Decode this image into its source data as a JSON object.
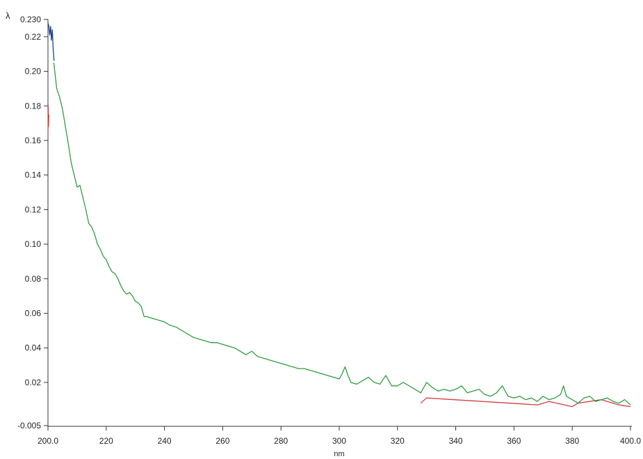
{
  "chart_data": {
    "type": "line",
    "title": "",
    "ylabel": "λ",
    "xlabel": "nm",
    "xlim": [
      200.0,
      400.0
    ],
    "ylim": [
      -0.005,
      0.23
    ],
    "grid": false,
    "x_ticks": [
      200.0,
      220,
      240,
      260,
      280,
      300,
      320,
      340,
      360,
      380,
      400.0
    ],
    "x_tick_labels": [
      "200.0",
      "220",
      "240",
      "260",
      "280",
      "300",
      "320",
      "340",
      "360",
      "380",
      "400.0"
    ],
    "y_ticks": [
      -0.005,
      0.02,
      0.04,
      0.06,
      0.08,
      0.1,
      0.12,
      0.14,
      0.16,
      0.18,
      0.2,
      0.22,
      0.23
    ],
    "y_tick_labels": [
      "-0.005",
      "0.02",
      "0.04",
      "0.06",
      "0.08",
      "0.10",
      "0.12",
      "0.14",
      "0.16",
      "0.18",
      "0.20",
      "0.22",
      "0.230"
    ],
    "series": [
      {
        "color": "#1f3f8f",
        "x": [
          200.0,
          200.3,
          200.6,
          200.9,
          201.2,
          201.5,
          201.8,
          202.1
        ],
        "y": [
          0.228,
          0.226,
          0.221,
          0.226,
          0.218,
          0.224,
          0.213,
          0.206
        ]
      },
      {
        "color": "#d04040",
        "x": [
          200.0,
          200.1,
          200.2,
          200.3
        ],
        "y": [
          0.162,
          0.18,
          0.168,
          0.175
        ]
      },
      {
        "color": "#d04040",
        "x": [
          328,
          330,
          368,
          372,
          380,
          382,
          390,
          396,
          400
        ],
        "y": [
          0.008,
          0.011,
          0.007,
          0.009,
          0.006,
          0.008,
          0.01,
          0.007,
          0.006
        ]
      },
      {
        "color": "#2e9e3e",
        "x": [
          202,
          203,
          204,
          205,
          206,
          207,
          208,
          209,
          210,
          211,
          212,
          213,
          214,
          215,
          216,
          217,
          218,
          219,
          220,
          221,
          222,
          223,
          224,
          225,
          226,
          227,
          228,
          229,
          230,
          231,
          232,
          233,
          234,
          236,
          238,
          240,
          242,
          244,
          246,
          248,
          250,
          252,
          254,
          256,
          258,
          260,
          262,
          264,
          266,
          268,
          270,
          272,
          274,
          276,
          278,
          280,
          282,
          284,
          286,
          288,
          290,
          292,
          294,
          296,
          298,
          300,
          301,
          302,
          303,
          304,
          306,
          308,
          310,
          312,
          314,
          316,
          318,
          320,
          322,
          324,
          326,
          328,
          330,
          332,
          334,
          336,
          338,
          340,
          342,
          344,
          346,
          348,
          350,
          352,
          354,
          356,
          358,
          360,
          362,
          364,
          366,
          368,
          370,
          372,
          374,
          376,
          377,
          378,
          380,
          382,
          384,
          386,
          388,
          390,
          392,
          394,
          396,
          398,
          400
        ],
        "y": [
          0.205,
          0.19,
          0.185,
          0.178,
          0.168,
          0.158,
          0.147,
          0.14,
          0.133,
          0.134,
          0.127,
          0.12,
          0.112,
          0.11,
          0.106,
          0.1,
          0.097,
          0.093,
          0.091,
          0.087,
          0.084,
          0.083,
          0.08,
          0.076,
          0.073,
          0.071,
          0.072,
          0.07,
          0.067,
          0.066,
          0.064,
          0.058,
          0.058,
          0.057,
          0.056,
          0.055,
          0.053,
          0.052,
          0.05,
          0.048,
          0.046,
          0.045,
          0.044,
          0.043,
          0.043,
          0.042,
          0.041,
          0.04,
          0.038,
          0.036,
          0.038,
          0.035,
          0.034,
          0.033,
          0.032,
          0.031,
          0.03,
          0.029,
          0.028,
          0.028,
          0.027,
          0.026,
          0.025,
          0.024,
          0.023,
          0.022,
          0.025,
          0.029,
          0.024,
          0.02,
          0.019,
          0.021,
          0.023,
          0.02,
          0.019,
          0.024,
          0.018,
          0.018,
          0.02,
          0.018,
          0.016,
          0.014,
          0.02,
          0.017,
          0.015,
          0.016,
          0.015,
          0.016,
          0.018,
          0.014,
          0.015,
          0.016,
          0.013,
          0.012,
          0.014,
          0.018,
          0.012,
          0.011,
          0.012,
          0.01,
          0.011,
          0.009,
          0.012,
          0.01,
          0.011,
          0.013,
          0.018,
          0.012,
          0.01,
          0.008,
          0.011,
          0.012,
          0.009,
          0.01,
          0.011,
          0.009,
          0.008,
          0.01,
          0.007
        ]
      }
    ]
  }
}
